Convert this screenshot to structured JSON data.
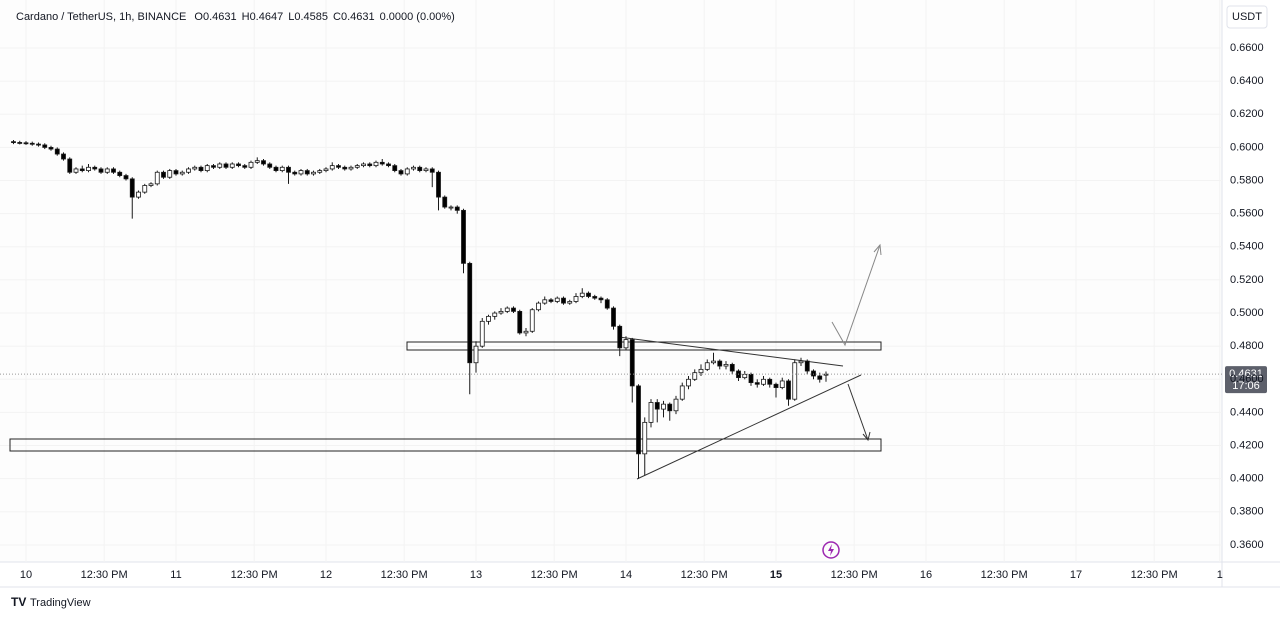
{
  "chart_data": {
    "type": "candlestick",
    "title": "Cardano / TetherUS, 1h, BINANCE",
    "ohlc_prefixes": [
      "O",
      "H",
      "L",
      "C"
    ],
    "change": "0.0000 (0.00%)",
    "currency": "USDT",
    "countdown": "17:06",
    "brand": "TradingView",
    "up_color": "#ffffff",
    "down_color": "#000000",
    "wick_color": "#1a1a1a",
    "ylim": [
      0.3497,
      0.689
    ],
    "yticks": [
      {
        "value": 0.66,
        "label": "0.6600"
      },
      {
        "value": 0.64,
        "label": "0.6400"
      },
      {
        "value": 0.62,
        "label": "0.6200"
      },
      {
        "value": 0.6,
        "label": "0.6000"
      },
      {
        "value": 0.58,
        "label": "0.5800"
      },
      {
        "value": 0.56,
        "label": "0.5600"
      },
      {
        "value": 0.54,
        "label": "0.5400"
      },
      {
        "value": 0.52,
        "label": "0.5200"
      },
      {
        "value": 0.5,
        "label": "0.5000"
      },
      {
        "value": 0.48,
        "label": "0.4800"
      },
      {
        "value": 0.46,
        "label": "0.4600"
      },
      {
        "value": 0.44,
        "label": "0.4400"
      },
      {
        "value": 0.42,
        "label": "0.4200"
      },
      {
        "value": 0.4,
        "label": "0.4000"
      },
      {
        "value": 0.38,
        "label": "0.3800"
      },
      {
        "value": 0.36,
        "label": "0.3600"
      }
    ],
    "xlim": [
      -2.16,
      193.36
    ],
    "xticks": [
      {
        "value": 2,
        "label": "10"
      },
      {
        "value": 14.5,
        "label": "12:30 PM"
      },
      {
        "value": 26,
        "label": "11"
      },
      {
        "value": 38.5,
        "label": "12:30 PM"
      },
      {
        "value": 50,
        "label": "12"
      },
      {
        "value": 62.5,
        "label": "12:30 PM"
      },
      {
        "value": 74,
        "label": "13"
      },
      {
        "value": 86.5,
        "label": "12:30 PM"
      },
      {
        "value": 98,
        "label": "14"
      },
      {
        "value": 110.5,
        "label": "12:30 PM"
      },
      {
        "value": 122,
        "label": "15"
      },
      {
        "value": 134.5,
        "label": "12:30 PM"
      },
      {
        "value": 146,
        "label": "16"
      },
      {
        "value": 158.5,
        "label": "12:30 PM"
      },
      {
        "value": 170,
        "label": "17"
      },
      {
        "value": 182.5,
        "label": "12:30 PM"
      },
      {
        "value": 193,
        "label": "1"
      }
    ],
    "open": [
      0.6035,
      0.603,
      0.6028,
      0.6025,
      0.602,
      0.6015,
      0.6,
      0.599,
      0.596,
      0.593,
      0.585,
      0.587,
      0.586,
      0.588,
      0.587,
      0.585,
      0.587,
      0.585,
      0.583,
      0.581,
      0.57,
      0.573,
      0.577,
      0.578,
      0.585,
      0.582,
      0.586,
      0.584,
      0.585,
      0.587,
      0.588,
      0.586,
      0.589,
      0.588,
      0.59,
      0.588,
      0.59,
      0.589,
      0.588,
      0.591,
      0.592,
      0.59,
      0.588,
      0.586,
      0.588,
      0.585,
      0.584,
      0.586,
      0.584,
      0.585,
      0.586,
      0.587,
      0.589,
      0.588,
      0.587,
      0.588,
      0.589,
      0.59,
      0.589,
      0.591,
      0.59,
      0.589,
      0.586,
      0.584,
      0.587,
      0.588,
      0.586,
      0.587,
      0.585,
      0.57,
      0.564,
      0.564,
      0.562,
      0.53,
      0.47,
      0.48,
      0.495,
      0.498,
      0.5,
      0.501,
      0.503,
      0.501,
      0.488,
      0.489,
      0.502,
      0.506,
      0.508,
      0.507,
      0.509,
      0.506,
      0.507,
      0.51,
      0.512,
      0.51,
      0.509,
      0.508,
      0.503,
      0.492,
      0.479,
      0.484,
      0.456,
      0.415,
      0.434,
      0.446,
      0.442,
      0.445,
      0.441,
      0.448,
      0.456,
      0.46,
      0.464,
      0.466,
      0.47,
      0.471,
      0.468,
      0.469,
      0.465,
      0.461,
      0.463,
      0.458,
      0.457,
      0.46,
      0.457,
      0.455,
      0.459,
      0.448,
      0.47,
      0.471,
      0.465,
      0.462,
      0.4631
    ],
    "high": [
      0.6045,
      0.604,
      0.6038,
      0.6035,
      0.603,
      0.6025,
      0.601,
      0.6,
      0.597,
      0.594,
      0.588,
      0.589,
      0.59,
      0.589,
      0.588,
      0.588,
      0.588,
      0.586,
      0.584,
      0.582,
      0.574,
      0.578,
      0.579,
      0.586,
      0.586,
      0.587,
      0.587,
      0.586,
      0.588,
      0.589,
      0.589,
      0.59,
      0.59,
      0.591,
      0.591,
      0.591,
      0.591,
      0.59,
      0.592,
      0.594,
      0.593,
      0.591,
      0.589,
      0.589,
      0.589,
      0.586,
      0.587,
      0.587,
      0.586,
      0.587,
      0.588,
      0.591,
      0.59,
      0.589,
      0.589,
      0.59,
      0.591,
      0.591,
      0.592,
      0.593,
      0.591,
      0.59,
      0.587,
      0.588,
      0.589,
      0.589,
      0.588,
      0.588,
      0.586,
      0.571,
      0.565,
      0.565,
      0.563,
      0.531,
      0.483,
      0.497,
      0.499,
      0.501,
      0.503,
      0.504,
      0.504,
      0.502,
      0.491,
      0.503,
      0.507,
      0.51,
      0.509,
      0.51,
      0.51,
      0.508,
      0.512,
      0.515,
      0.513,
      0.511,
      0.51,
      0.509,
      0.504,
      0.493,
      0.486,
      0.485,
      0.457,
      0.437,
      0.448,
      0.448,
      0.447,
      0.446,
      0.45,
      0.458,
      0.462,
      0.466,
      0.469,
      0.472,
      0.476,
      0.472,
      0.471,
      0.47,
      0.466,
      0.465,
      0.464,
      0.46,
      0.462,
      0.461,
      0.458,
      0.461,
      0.46,
      0.472,
      0.473,
      0.472,
      0.466,
      0.464,
      0.4647
    ],
    "low": [
      0.602,
      0.6018,
      0.6015,
      0.601,
      0.6005,
      0.599,
      0.598,
      0.595,
      0.592,
      0.584,
      0.584,
      0.585,
      0.585,
      0.586,
      0.584,
      0.584,
      0.584,
      0.582,
      0.58,
      0.557,
      0.569,
      0.572,
      0.576,
      0.577,
      0.581,
      0.581,
      0.583,
      0.583,
      0.584,
      0.586,
      0.585,
      0.585,
      0.587,
      0.587,
      0.587,
      0.587,
      0.588,
      0.587,
      0.587,
      0.59,
      0.589,
      0.587,
      0.585,
      0.585,
      0.578,
      0.583,
      0.583,
      0.583,
      0.583,
      0.584,
      0.585,
      0.586,
      0.587,
      0.586,
      0.586,
      0.587,
      0.588,
      0.588,
      0.588,
      0.589,
      0.588,
      0.585,
      0.583,
      0.583,
      0.586,
      0.585,
      0.585,
      0.576,
      0.562,
      0.563,
      0.562,
      0.56,
      0.524,
      0.451,
      0.464,
      0.479,
      0.493,
      0.496,
      0.499,
      0.5,
      0.5,
      0.487,
      0.486,
      0.488,
      0.501,
      0.505,
      0.506,
      0.506,
      0.505,
      0.505,
      0.506,
      0.509,
      0.509,
      0.508,
      0.506,
      0.502,
      0.49,
      0.474,
      0.478,
      0.446,
      0.4,
      0.402,
      0.431,
      0.434,
      0.437,
      0.435,
      0.439,
      0.447,
      0.454,
      0.459,
      0.462,
      0.465,
      0.469,
      0.466,
      0.466,
      0.463,
      0.459,
      0.46,
      0.456,
      0.455,
      0.456,
      0.455,
      0.449,
      0.454,
      0.444,
      0.447,
      0.468,
      0.463,
      0.46,
      0.458,
      0.4585
    ],
    "close": [
      0.603,
      0.6028,
      0.6025,
      0.602,
      0.6015,
      0.6,
      0.599,
      0.596,
      0.593,
      0.585,
      0.587,
      0.586,
      0.588,
      0.587,
      0.585,
      0.587,
      0.585,
      0.583,
      0.581,
      0.57,
      0.573,
      0.577,
      0.578,
      0.585,
      0.582,
      0.586,
      0.584,
      0.585,
      0.587,
      0.588,
      0.586,
      0.589,
      0.588,
      0.59,
      0.588,
      0.59,
      0.589,
      0.588,
      0.591,
      0.592,
      0.59,
      0.588,
      0.586,
      0.588,
      0.585,
      0.584,
      0.586,
      0.584,
      0.585,
      0.586,
      0.587,
      0.589,
      0.588,
      0.587,
      0.588,
      0.589,
      0.59,
      0.589,
      0.591,
      0.59,
      0.589,
      0.586,
      0.584,
      0.587,
      0.588,
      0.586,
      0.587,
      0.585,
      0.57,
      0.564,
      0.564,
      0.562,
      0.53,
      0.47,
      0.48,
      0.495,
      0.498,
      0.5,
      0.501,
      0.503,
      0.501,
      0.488,
      0.489,
      0.502,
      0.506,
      0.508,
      0.507,
      0.509,
      0.506,
      0.507,
      0.51,
      0.512,
      0.51,
      0.509,
      0.508,
      0.503,
      0.492,
      0.479,
      0.484,
      0.456,
      0.415,
      0.434,
      0.446,
      0.442,
      0.445,
      0.441,
      0.448,
      0.456,
      0.46,
      0.464,
      0.466,
      0.47,
      0.471,
      0.468,
      0.469,
      0.465,
      0.461,
      0.463,
      0.458,
      0.457,
      0.46,
      0.457,
      0.455,
      0.459,
      0.448,
      0.47,
      0.471,
      0.465,
      0.462,
      0.46,
      0.4631
    ]
  }
}
